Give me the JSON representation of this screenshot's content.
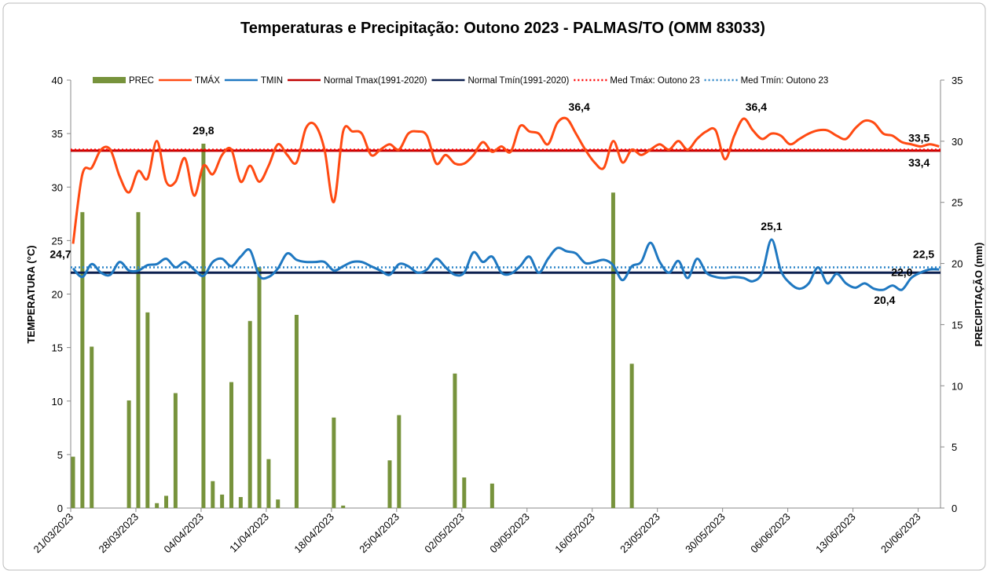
{
  "chart_data": {
    "type": "combo",
    "title": "Temperaturas e Precipitação: Outono 2023 - PALMAS/TO (OMM 83033)",
    "y_label": "TEMPERATURA (°C)",
    "y2_label": "PRECIPITAÇÃO (mm)",
    "ylim": [
      0,
      40
    ],
    "yticks": [
      0,
      5,
      10,
      15,
      20,
      25,
      30,
      35,
      40
    ],
    "y2lim": [
      0,
      35
    ],
    "y2ticks": [
      0,
      5,
      10,
      15,
      20,
      25,
      30,
      35
    ],
    "categories": [
      "21/03/2023",
      null,
      null,
      null,
      null,
      null,
      null,
      "28/03/2023",
      null,
      null,
      null,
      null,
      null,
      null,
      "04/04/2023",
      null,
      null,
      null,
      null,
      null,
      null,
      "11/04/2023",
      null,
      null,
      null,
      null,
      null,
      null,
      "18/04/2023",
      null,
      null,
      null,
      null,
      null,
      null,
      "25/04/2023",
      null,
      null,
      null,
      null,
      null,
      null,
      "02/05/2023",
      null,
      null,
      null,
      null,
      null,
      null,
      "09/05/2023",
      null,
      null,
      null,
      null,
      null,
      null,
      "16/05/2023",
      null,
      null,
      null,
      null,
      null,
      null,
      "23/05/2023",
      null,
      null,
      null,
      null,
      null,
      null,
      "30/05/2023",
      null,
      null,
      null,
      null,
      null,
      null,
      "06/06/2023",
      null,
      null,
      null,
      null,
      null,
      null,
      "13/06/2023",
      null,
      null,
      null,
      null,
      null,
      null,
      "20/06/2023",
      null,
      null
    ],
    "series": [
      {
        "name": "PREC",
        "kind": "bar",
        "axis": "y2",
        "color": "#77933c",
        "values": [
          4.2,
          24.2,
          13.2,
          0,
          0,
          0,
          8.8,
          24.2,
          16.0,
          0.4,
          1.0,
          9.4,
          0,
          0,
          29.8,
          2.2,
          1.1,
          10.3,
          0.9,
          15.3,
          19.7,
          4.0,
          0.7,
          0,
          15.8,
          0,
          0,
          0,
          7.4,
          0.2,
          0,
          0,
          0,
          0,
          3.9,
          7.6,
          0,
          0,
          0,
          0,
          0,
          11.0,
          2.5,
          0,
          0,
          2.0,
          0,
          0,
          0,
          0,
          0,
          0,
          0,
          0,
          0,
          0,
          0,
          0,
          25.8,
          0,
          11.8,
          0,
          0,
          0,
          0,
          0,
          0,
          0,
          0,
          0,
          0,
          0,
          0,
          0,
          0,
          0,
          0,
          0,
          0,
          0,
          0,
          0,
          0,
          0,
          0,
          0,
          0,
          0,
          0,
          0,
          0,
          0,
          0,
          0
        ]
      },
      {
        "name": "TMÁX",
        "kind": "line",
        "color": "#ff4a12",
        "values": [
          24.7,
          31.2,
          31.8,
          33.5,
          33.5,
          31.0,
          29.5,
          31.5,
          30.8,
          34.3,
          30.5,
          30.5,
          32.7,
          29.2,
          32.0,
          31.2,
          33.0,
          33.5,
          30.5,
          32.0,
          30.5,
          32.0,
          34.0,
          33.0,
          32.3,
          35.5,
          35.8,
          33.5,
          28.6,
          35.2,
          35.2,
          35.0,
          33.0,
          33.5,
          34.0,
          33.5,
          35.0,
          35.2,
          34.8,
          32.2,
          33.0,
          32.2,
          32.2,
          33.0,
          34.2,
          33.3,
          33.8,
          33.3,
          35.7,
          35.2,
          35.0,
          34.0,
          36.0,
          36.4,
          35.0,
          33.5,
          32.3,
          31.8,
          34.3,
          32.3,
          33.5,
          33.0,
          33.5,
          34.0,
          33.5,
          34.3,
          33.5,
          34.5,
          35.2,
          35.3,
          32.6,
          34.8,
          36.4,
          35.3,
          34.5,
          35.0,
          34.8,
          34.0,
          34.5,
          35.0,
          35.3,
          35.3,
          34.8,
          34.5,
          35.5,
          36.2,
          36.0,
          35.0,
          34.8,
          34.2,
          34.0,
          33.8,
          34.0,
          33.8
        ]
      },
      {
        "name": "TMIN",
        "kind": "line",
        "color": "#1f78c1",
        "values": [
          22.4,
          21.6,
          22.8,
          22.0,
          21.8,
          23.0,
          22.2,
          22.2,
          22.7,
          22.8,
          23.3,
          22.5,
          23.0,
          22.3,
          21.7,
          23.0,
          23.3,
          22.6,
          23.5,
          24.1,
          21.7,
          21.6,
          22.4,
          23.8,
          23.2,
          23.0,
          23.0,
          23.0,
          22.2,
          22.6,
          23.0,
          23.0,
          22.6,
          22.2,
          21.8,
          22.8,
          22.6,
          22.0,
          22.3,
          23.3,
          22.5,
          21.8,
          22.0,
          23.9,
          23.0,
          23.5,
          22.0,
          21.9,
          22.6,
          23.5,
          22.0,
          23.3,
          24.3,
          24.0,
          23.8,
          22.9,
          23.0,
          23.2,
          22.7,
          21.3,
          22.6,
          23.0,
          24.8,
          23.0,
          22.0,
          23.1,
          21.5,
          23.3,
          22.0,
          21.6,
          21.5,
          21.6,
          21.5,
          21.2,
          22.0,
          25.1,
          22.2,
          21.0,
          20.5,
          21.0,
          22.5,
          21.0,
          21.9,
          21.0,
          20.6,
          21.0,
          20.5,
          20.4,
          20.8,
          20.4,
          21.5,
          22.0,
          22.3,
          22.3
        ]
      },
      {
        "name": "Normal Tmax(1991-2020)",
        "kind": "hline",
        "color": "#c00000",
        "value": 33.4
      },
      {
        "name": "Normal Tmín(1991-2020)",
        "kind": "hline",
        "color": "#0b1f4f",
        "value": 22.0
      },
      {
        "name": "Med Tmáx: Outono 23",
        "kind": "hline",
        "dotted": true,
        "color": "#ff0000",
        "value": 33.5
      },
      {
        "name": "Med Tmín: Outono 23",
        "kind": "hline",
        "dotted": true,
        "color": "#2e86c8",
        "value": 22.5
      }
    ],
    "annotations": [
      {
        "text": "24,7",
        "x": 0,
        "y": 24.7,
        "color": "#ff0000"
      },
      {
        "text": "29,8",
        "x": 14,
        "y": 29.8,
        "axis": "y2",
        "color": "#77933c"
      },
      {
        "text": "36,4",
        "x": 53,
        "y": 36.4,
        "color": "#ff0000"
      },
      {
        "text": "36,4",
        "x": 72,
        "y": 36.4,
        "color": "#ff0000"
      },
      {
        "text": "33,5",
        "x": 90,
        "y": 33.5,
        "color": "#ff0000"
      },
      {
        "text": "33,4",
        "x": 90,
        "y": 33.4,
        "color": "#c00000"
      },
      {
        "text": "25,1",
        "x": 75,
        "y": 25.1,
        "color": "#1f78c1"
      },
      {
        "text": "22,5",
        "x": 91,
        "y": 22.5,
        "color": "#1f78c1"
      },
      {
        "text": "22,0",
        "x": 89,
        "y": 22.0,
        "color": "#0b1f4f"
      },
      {
        "text": "20,4",
        "x": 89,
        "y": 20.4,
        "color": "#1f78c1"
      }
    ]
  }
}
